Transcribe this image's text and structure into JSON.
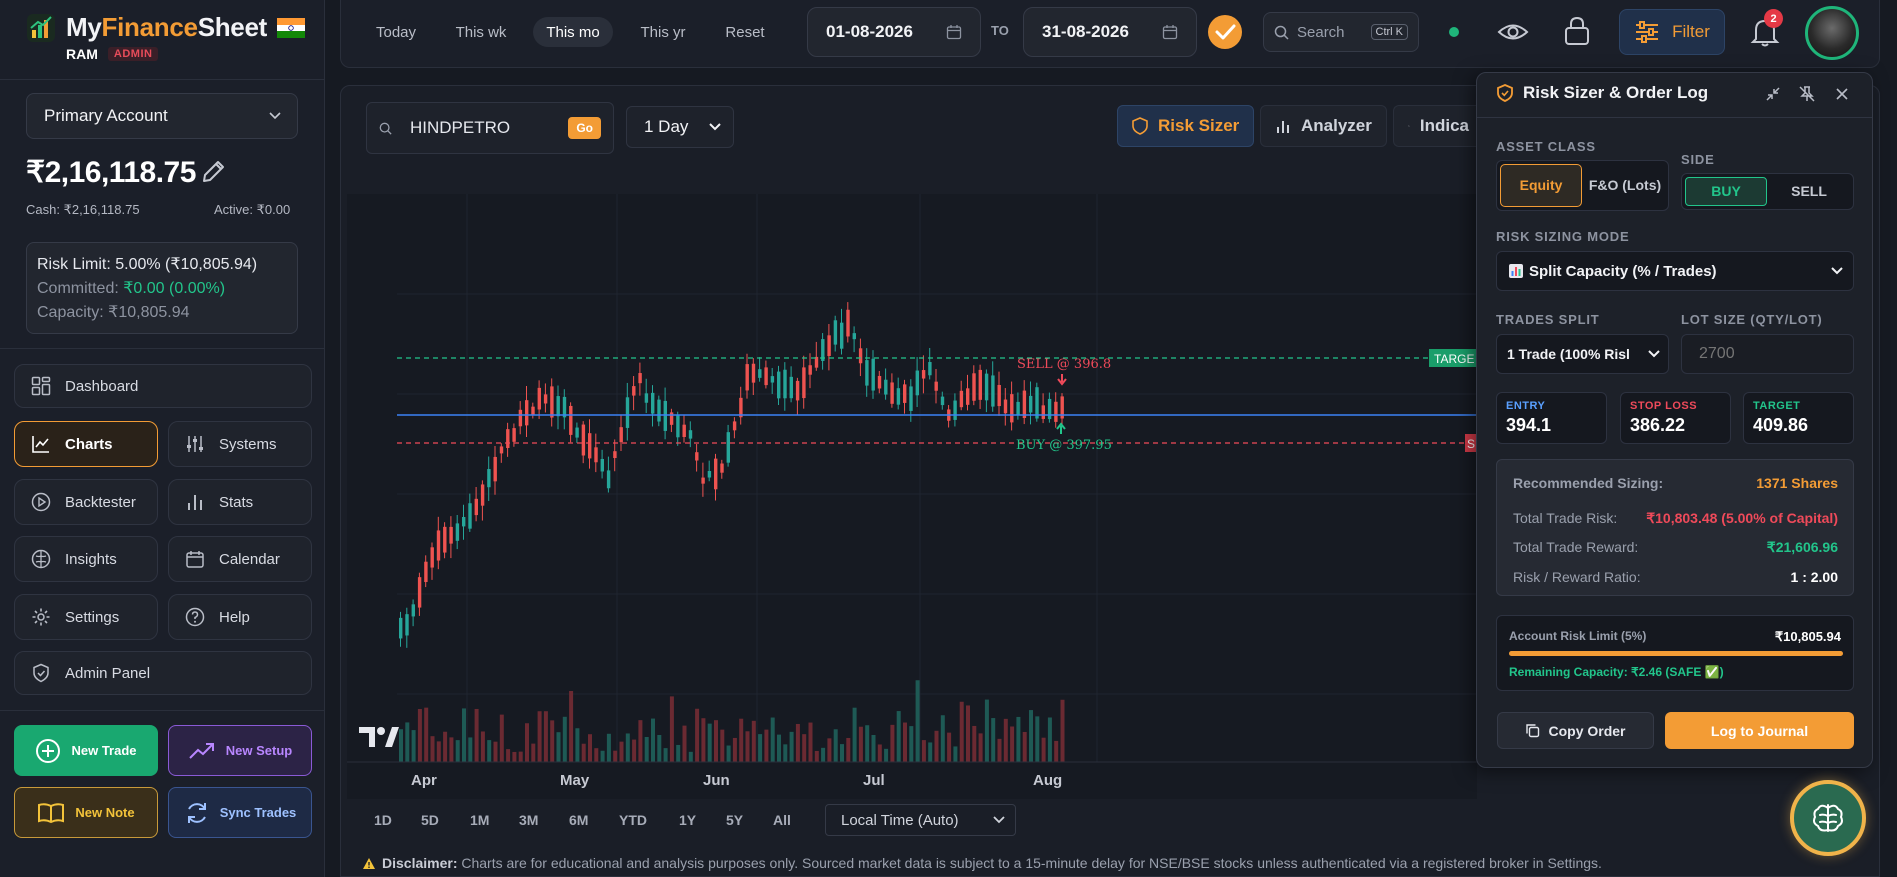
{
  "app": {
    "name_prefix": "My",
    "name_bold": "Finance",
    "name_suffix": "Sheet",
    "user": "RAM",
    "role": "ADMIN"
  },
  "account": {
    "selected": "Primary Account",
    "balance": "₹2,16,118.75",
    "cash": "Cash: ₹2,16,118.75",
    "active": "Active: ₹0.00"
  },
  "risk_summary": {
    "limit_label": "Risk Limit:",
    "limit_value": "5.00% (₹10,805.94)",
    "committed_label": "Committed:",
    "committed_value": "₹0.00 (0.00%)",
    "capacity": "Capacity: ₹10,805.94"
  },
  "nav": {
    "dashboard": "Dashboard",
    "charts": "Charts",
    "systems": "Systems",
    "backtester": "Backtester",
    "stats": "Stats",
    "insights": "Insights",
    "calendar": "Calendar",
    "settings": "Settings",
    "help": "Help",
    "admin": "Admin Panel"
  },
  "actions": {
    "new_trade": "New Trade",
    "new_setup": "New Setup",
    "new_note": "New Note",
    "sync": "Sync Trades"
  },
  "topbar": {
    "quick": [
      "Today",
      "This wk",
      "This mo",
      "This yr",
      "Reset"
    ],
    "active_quick": "This mo",
    "from": "01-08-2026",
    "to_label": "TO",
    "to": "31-08-2026",
    "search": "Search",
    "search_kbd": "Ctrl K",
    "filter": "Filter",
    "notifications": "2"
  },
  "chart": {
    "ticker": "HINDPETRO",
    "go": "Go",
    "timeframe": "1 Day",
    "tool_risk": "Risk Sizer",
    "tool_analyzer": "Analyzer",
    "tool_indicators": "Indica",
    "sell_label": "SELL @ 396.8",
    "buy_label": "BUY @ 397.95",
    "target_tag": "TARGE",
    "stop_tag": "S",
    "months": [
      "Apr",
      "May",
      "Jun",
      "Jul",
      "Aug"
    ],
    "ranges": [
      "1D",
      "5D",
      "1M",
      "3M",
      "6M",
      "YTD",
      "1Y",
      "5Y",
      "All"
    ],
    "timezone": "Local Time (Auto)",
    "disclaimer_label": "Disclaimer:",
    "disclaimer_text": "Charts are for educational and analysis purposes only. Sourced market data is subject to a 15-minute delay for NSE/BSE stocks unless authenticated via a registered broker in Settings.",
    "target_price": 409.86,
    "entry_price": 394.1,
    "stop_price": 386.22
  },
  "chart_data": {
    "type": "candlestick",
    "symbol": "HINDPETRO",
    "interval": "1 Day",
    "x_ticks": [
      "Apr",
      "May",
      "Jun",
      "Jul",
      "Aug"
    ]
  },
  "risk_panel": {
    "title": "Risk Sizer & Order Log",
    "asset_class_label": "ASSET CLASS",
    "equity": "Equity",
    "fno": "F&O (Lots)",
    "side_label": "SIDE",
    "buy": "BUY",
    "sell": "SELL",
    "mode_label": "RISK SIZING MODE",
    "mode": "Split Capacity (% / Trades)",
    "trades_split_label": "TRADES SPLIT",
    "trades_split": "1 Trade (100% Risl",
    "lot_label": "LOT SIZE (QTY/LOT)",
    "lot_placeholder": "2700",
    "entry_label": "ENTRY",
    "entry": "394.1",
    "stop_label": "STOP LOSS",
    "stop": "386.22",
    "target_label": "TARGET",
    "target": "409.86",
    "rec_label": "Recommended Sizing:",
    "rec_value": "1371 Shares",
    "risk_label": "Total Trade Risk:",
    "risk_value": "₹10,803.48 (5.00% of Capital)",
    "reward_label": "Total Trade Reward:",
    "reward_value": "₹21,606.96",
    "rr_label": "Risk / Reward Ratio:",
    "rr_value": "1 : 2.00",
    "acct_limit_label": "Account Risk Limit (5%)",
    "acct_limit_value": "₹10,805.94",
    "remaining": "Remaining Capacity: ₹2.46 (SAFE ✅)",
    "remaining_fraction": 0.9998,
    "copy": "Copy Order",
    "log": "Log to Journal"
  },
  "colors": {
    "accent": "#f39c35",
    "green": "#22c58b",
    "red": "#ef4a5a",
    "blue": "#3b82f6"
  }
}
